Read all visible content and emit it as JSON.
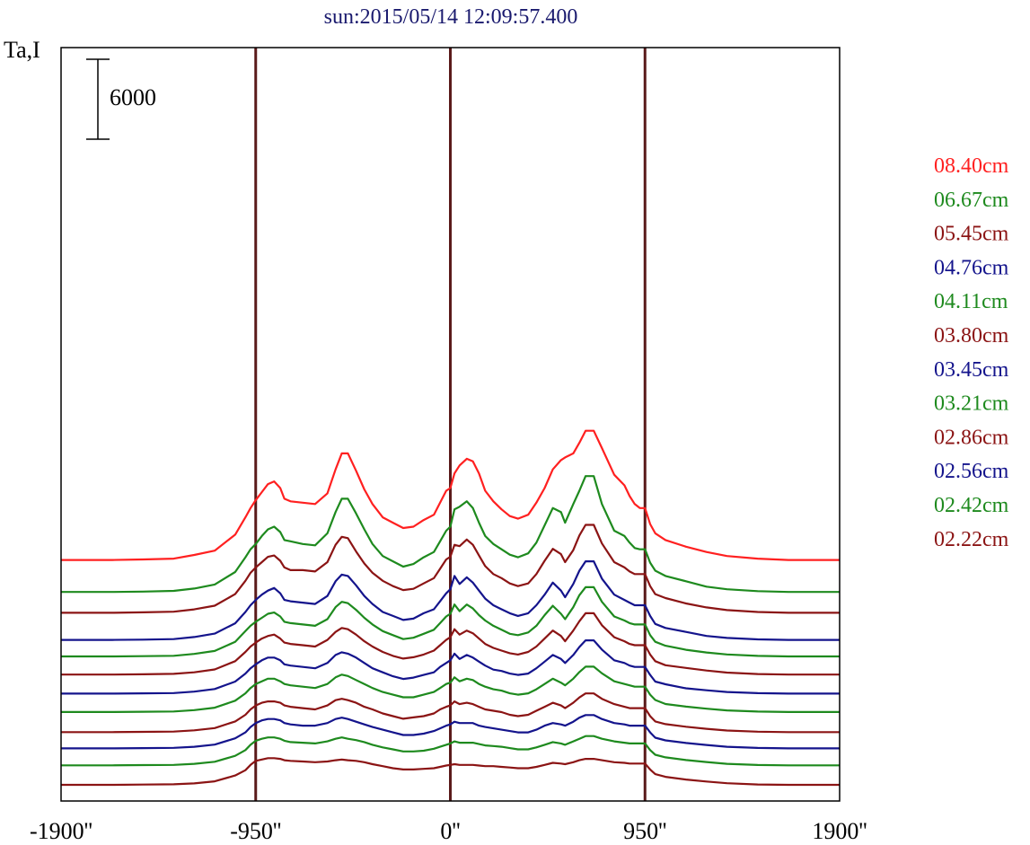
{
  "chart_data": {
    "type": "line",
    "title": "sun:2015/05/14 12:09:57.400",
    "ylabel": "Ta,I",
    "xlabel": "",
    "scale_bar": {
      "label": "6000",
      "value": 6000
    },
    "xlim": [
      -1900,
      1900
    ],
    "x_ticks": [
      {
        "value": -1900,
        "label": "-1900''"
      },
      {
        "value": -950,
        "label": "-950''"
      },
      {
        "value": 0,
        "label": "0''"
      },
      {
        "value": 950,
        "label": "950''"
      },
      {
        "value": 1900,
        "label": "1900''"
      }
    ],
    "vertical_lines": [
      -950,
      0,
      950
    ],
    "grid": false,
    "legend_placement": "right",
    "colors": {
      "red": "#ff2020",
      "green": "#1e8a1e",
      "maroon": "#8b1414",
      "navy": "#14148c",
      "frame": "#000000",
      "vline": "#5a1a1a"
    },
    "legend": [
      {
        "label": "08.40cm",
        "color": "#ff2020"
      },
      {
        "label": "06.67cm",
        "color": "#1e8a1e"
      },
      {
        "label": "05.45cm",
        "color": "#8b1414"
      },
      {
        "label": "04.76cm",
        "color": "#14148c"
      },
      {
        "label": "04.11cm",
        "color": "#1e8a1e"
      },
      {
        "label": "03.80cm",
        "color": "#8b1414"
      },
      {
        "label": "03.45cm",
        "color": "#14148c"
      },
      {
        "label": "03.21cm",
        "color": "#1e8a1e"
      },
      {
        "label": "02.86cm",
        "color": "#8b1414"
      },
      {
        "label": "02.56cm",
        "color": "#14148c"
      },
      {
        "label": "02.42cm",
        "color": "#1e8a1e"
      },
      {
        "label": "02.22cm",
        "color": "#8b1414"
      }
    ],
    "series_colors": [
      "#ff2020",
      "#1e8a1e",
      "#8b1414",
      "#14148c",
      "#1e8a1e",
      "#8b1414",
      "#14148c",
      "#1e8a1e",
      "#8b1414",
      "#14148c",
      "#1e8a1e",
      "#8b1414",
      "#14148c",
      "#1e8a1e",
      "#8b1414"
    ],
    "series_baseline": [
      16880,
      14480,
      12920,
      10880,
      9640,
      8280,
      6850,
      5470,
      3960,
      2740,
      1460,
      0
    ],
    "profile": {
      "x": [
        -1900,
        -1750,
        -1650,
        -1500,
        -1350,
        -1250,
        -1150,
        -1050,
        -1000,
        -975,
        -950,
        -920,
        -890,
        -860,
        -830,
        -810,
        -780,
        -720,
        -660,
        -600,
        -560,
        -530,
        -500,
        -460,
        -420,
        -380,
        -330,
        -280,
        -230,
        -180,
        -130,
        -80,
        -50,
        -20,
        0,
        20,
        45,
        80,
        110,
        140,
        170,
        210,
        250,
        290,
        330,
        380,
        420,
        460,
        500,
        540,
        560,
        600,
        630,
        660,
        700,
        740,
        800,
        850,
        875,
        900,
        925,
        950,
        975,
        1000,
        1050,
        1150,
        1250,
        1350,
        1500,
        1650,
        1750,
        1900
      ],
      "series": [
        {
          "values": [
            0,
            0,
            0,
            0,
            0,
            0,
            0,
            0,
            0,
            0,
            0,
            0,
            0,
            0,
            0,
            0,
            0,
            0,
            0,
            0,
            0,
            0,
            0,
            0,
            0,
            0,
            0,
            0,
            0,
            0,
            0,
            0,
            0,
            0,
            0,
            0,
            0,
            0,
            0,
            0,
            0,
            0,
            0,
            0,
            0,
            0,
            0,
            0,
            0,
            0,
            0,
            0,
            0,
            0,
            0,
            0,
            0,
            0,
            0,
            0,
            0,
            0,
            0,
            0,
            0,
            0,
            0,
            0,
            0,
            0,
            0,
            0
          ]
        }
      ]
    },
    "series": [
      {
        "values": [
          0,
          0,
          0,
          40,
          100,
          380,
          700,
          1900,
          3200,
          3900,
          4500,
          5100,
          5700,
          5900,
          5400,
          4600,
          4400,
          4300,
          4200,
          5000,
          6800,
          8000,
          8000,
          6700,
          5300,
          4200,
          3200,
          2800,
          2400,
          2500,
          3000,
          3400,
          4300,
          5200,
          5400,
          6500,
          7100,
          7600,
          7400,
          6500,
          5200,
          4400,
          3800,
          3300,
          3100,
          3400,
          4300,
          5400,
          6800,
          7500,
          7700,
          8000,
          8800,
          9700,
          9700,
          8400,
          6400,
          5600,
          4800,
          4200,
          3900,
          3900,
          2700,
          2000,
          1500,
          1000,
          600,
          300,
          100,
          0,
          0,
          0
        ]
      },
      {
        "values": [
          0,
          0,
          0,
          30,
          80,
          260,
          560,
          1500,
          2600,
          3200,
          3600,
          4200,
          4700,
          4900,
          4500,
          3900,
          3800,
          3600,
          3500,
          4400,
          6000,
          7000,
          7000,
          5900,
          4700,
          3600,
          2700,
          2300,
          1900,
          2100,
          2600,
          3000,
          3800,
          4600,
          4900,
          6200,
          6400,
          6800,
          6300,
          5200,
          4200,
          3600,
          3200,
          2800,
          2600,
          2900,
          3700,
          5000,
          6300,
          6000,
          5200,
          6600,
          7600,
          8700,
          8700,
          6600,
          4600,
          4200,
          3700,
          3300,
          3200,
          3200,
          2200,
          1600,
          1200,
          800,
          400,
          200,
          60,
          0,
          0,
          0
        ]
      },
      {
        "values": [
          0,
          0,
          0,
          30,
          80,
          250,
          530,
          1400,
          2400,
          3000,
          3400,
          3800,
          4200,
          4300,
          3900,
          3400,
          3200,
          3200,
          3100,
          3800,
          5100,
          5700,
          5600,
          4600,
          3700,
          3000,
          2400,
          2000,
          1700,
          1800,
          2200,
          2600,
          3300,
          4000,
          4200,
          5100,
          5000,
          5500,
          5100,
          4300,
          3500,
          2900,
          2600,
          2200,
          2000,
          2200,
          2900,
          3900,
          4800,
          4400,
          3800,
          4700,
          5800,
          6600,
          6600,
          5200,
          3800,
          3400,
          3100,
          2900,
          2900,
          2900,
          2000,
          1400,
          1100,
          700,
          400,
          200,
          60,
          0,
          0,
          0
        ]
      },
      {
        "values": [
          0,
          0,
          0,
          20,
          60,
          220,
          470,
          1250,
          2100,
          2600,
          3000,
          3400,
          3700,
          3900,
          3500,
          3000,
          2900,
          2800,
          2700,
          3300,
          4400,
          4900,
          4800,
          4100,
          3300,
          2700,
          2100,
          1800,
          1500,
          1600,
          2000,
          2300,
          2900,
          3500,
          3800,
          4800,
          4200,
          4700,
          4300,
          3700,
          3100,
          2600,
          2300,
          2000,
          1800,
          2000,
          2600,
          3400,
          4300,
          3700,
          3200,
          4200,
          5200,
          5900,
          5900,
          4600,
          3400,
          3000,
          2800,
          2600,
          2600,
          2600,
          1800,
          1200,
          900,
          600,
          300,
          150,
          40,
          0,
          0,
          0
        ]
      },
      {
        "values": [
          0,
          0,
          0,
          20,
          50,
          190,
          410,
          1100,
          1900,
          2300,
          2600,
          2900,
          3200,
          3300,
          3000,
          2600,
          2500,
          2400,
          2300,
          2800,
          3700,
          4100,
          4000,
          3500,
          2900,
          2400,
          1900,
          1600,
          1300,
          1400,
          1700,
          2000,
          2500,
          3000,
          3200,
          3900,
          3400,
          3900,
          3600,
          3100,
          2700,
          2300,
          2000,
          1700,
          1600,
          1800,
          2300,
          3100,
          3800,
          3200,
          2800,
          3700,
          4600,
          5200,
          5200,
          4100,
          3000,
          2700,
          2500,
          2400,
          2400,
          2400,
          1600,
          1100,
          800,
          500,
          300,
          150,
          40,
          0,
          0,
          0
        ]
      },
      {
        "values": [
          0,
          0,
          0,
          20,
          50,
          170,
          380,
          1000,
          1700,
          2100,
          2400,
          2700,
          2900,
          3000,
          2700,
          2400,
          2300,
          2200,
          2100,
          2600,
          3200,
          3500,
          3400,
          3000,
          2500,
          2100,
          1700,
          1400,
          1200,
          1300,
          1500,
          1800,
          2200,
          2600,
          2800,
          3400,
          3000,
          3300,
          3100,
          2700,
          2300,
          2000,
          1800,
          1600,
          1500,
          1700,
          2100,
          2700,
          3300,
          2900,
          2500,
          3300,
          4000,
          4600,
          4600,
          3700,
          2800,
          2500,
          2300,
          2200,
          2200,
          2200,
          1500,
          1000,
          700,
          500,
          300,
          150,
          40,
          0,
          0,
          0
        ]
      },
      {
        "values": [
          0,
          0,
          0,
          20,
          40,
          150,
          340,
          900,
          1500,
          1900,
          2200,
          2500,
          2700,
          2700,
          2500,
          2200,
          2100,
          2000,
          1900,
          2300,
          2900,
          3100,
          3000,
          2700,
          2300,
          1900,
          1600,
          1300,
          1100,
          1200,
          1400,
          1600,
          2000,
          2300,
          2500,
          3000,
          2600,
          2900,
          2700,
          2400,
          2100,
          1800,
          1700,
          1500,
          1400,
          1500,
          1900,
          2400,
          2900,
          2600,
          2300,
          2900,
          3500,
          4000,
          4000,
          3300,
          2500,
          2300,
          2100,
          2000,
          2000,
          2000,
          1400,
          900,
          700,
          400,
          250,
          120,
          30,
          0,
          0,
          0
        ]
      },
      {
        "values": [
          0,
          0,
          0,
          20,
          40,
          140,
          320,
          850,
          1400,
          1800,
          2100,
          2300,
          2500,
          2500,
          2300,
          2100,
          2000,
          1900,
          1800,
          2100,
          2600,
          2800,
          2700,
          2400,
          2100,
          1800,
          1500,
          1300,
          1100,
          1100,
          1300,
          1500,
          1800,
          2100,
          2200,
          2600,
          2300,
          2500,
          2400,
          2100,
          1900,
          1700,
          1600,
          1400,
          1300,
          1400,
          1700,
          2100,
          2500,
          2200,
          2000,
          2500,
          3000,
          3400,
          3400,
          2900,
          2300,
          2100,
          2000,
          1900,
          1900,
          1900,
          1300,
          900,
          600,
          400,
          250,
          120,
          30,
          0,
          0,
          0
        ]
      },
      {
        "values": [
          0,
          0,
          0,
          20,
          40,
          130,
          300,
          800,
          1300,
          1700,
          2000,
          2200,
          2300,
          2300,
          2200,
          2000,
          1900,
          1800,
          1700,
          2000,
          2400,
          2500,
          2400,
          2200,
          1900,
          1700,
          1400,
          1200,
          1000,
          1100,
          1200,
          1400,
          1700,
          1900,
          2000,
          2300,
          2100,
          2200,
          2100,
          1900,
          1700,
          1600,
          1500,
          1300,
          1200,
          1300,
          1600,
          1900,
          2200,
          2000,
          1800,
          2200,
          2600,
          2900,
          2900,
          2500,
          2100,
          1900,
          1800,
          1800,
          1800,
          1800,
          1200,
          800,
          600,
          400,
          250,
          120,
          30,
          0,
          0,
          0
        ]
      },
      {
        "values": [
          0,
          0,
          0,
          20,
          40,
          120,
          280,
          750,
          1200,
          1600,
          1900,
          2100,
          2200,
          2200,
          2100,
          1900,
          1800,
          1700,
          1700,
          1900,
          2200,
          2300,
          2200,
          2000,
          1800,
          1600,
          1400,
          1200,
          1000,
          1000,
          1100,
          1300,
          1500,
          1700,
          1800,
          2000,
          1900,
          1900,
          1900,
          1700,
          1600,
          1500,
          1400,
          1300,
          1200,
          1200,
          1400,
          1700,
          1900,
          1800,
          1700,
          2000,
          2300,
          2500,
          2500,
          2200,
          1900,
          1800,
          1700,
          1700,
          1700,
          1700,
          1200,
          800,
          600,
          400,
          250,
          120,
          30,
          0,
          0,
          0
        ]
      },
      {
        "values": [
          0,
          0,
          0,
          20,
          40,
          120,
          270,
          720,
          1150,
          1550,
          1850,
          2000,
          2100,
          2100,
          2000,
          1850,
          1750,
          1700,
          1650,
          1800,
          2000,
          2100,
          2000,
          1900,
          1750,
          1550,
          1350,
          1200,
          1050,
          1050,
          1100,
          1250,
          1400,
          1550,
          1650,
          1800,
          1700,
          1700,
          1700,
          1600,
          1500,
          1450,
          1400,
          1300,
          1200,
          1200,
          1350,
          1550,
          1750,
          1650,
          1550,
          1800,
          2000,
          2200,
          2200,
          2000,
          1800,
          1700,
          1650,
          1650,
          1650,
          1650,
          1150,
          800,
          600,
          400,
          250,
          120,
          30,
          0,
          0,
          0
        ]
      },
      {
        "values": [
          0,
          0,
          0,
          20,
          40,
          110,
          260,
          700,
          1100,
          1500,
          1800,
          1900,
          2000,
          2000,
          1950,
          1850,
          1800,
          1750,
          1700,
          1750,
          1850,
          1900,
          1850,
          1800,
          1700,
          1550,
          1400,
          1250,
          1150,
          1150,
          1200,
          1250,
          1350,
          1450,
          1500,
          1550,
          1500,
          1500,
          1500,
          1450,
          1400,
          1400,
          1350,
          1300,
          1250,
          1250,
          1350,
          1500,
          1650,
          1600,
          1550,
          1700,
          1850,
          1950,
          1950,
          1850,
          1700,
          1650,
          1600,
          1600,
          1600,
          1600,
          1150,
          800,
          600,
          400,
          250,
          120,
          30,
          0,
          0,
          0
        ]
      }
    ]
  }
}
